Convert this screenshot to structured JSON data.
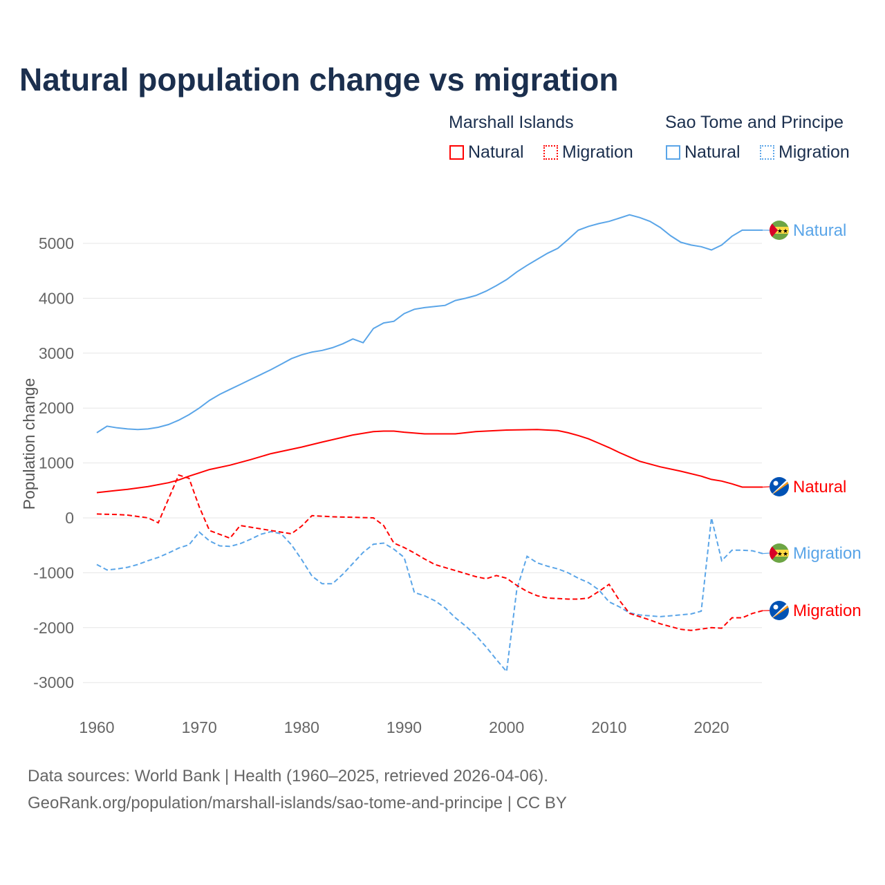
{
  "title": "Natural population change vs migration",
  "legend": {
    "groups": [
      {
        "label": "Marshall Islands",
        "color": "#ff0000",
        "items": [
          "Natural",
          "Migration"
        ]
      },
      {
        "label": "Sao Tome and Principe",
        "color": "#5aa5e8",
        "items": [
          "Natural",
          "Migration"
        ]
      }
    ]
  },
  "footer": {
    "line1": "Data sources: World Bank | Health (1960–2025, retrieved 2026-04-06).",
    "line2": "GeoRank.org/population/marshall-islands/sao-tome-and-principe | CC BY"
  },
  "chart_data": {
    "type": "line",
    "title": "Natural population change vs migration",
    "xlabel": "",
    "ylabel": "Population change",
    "xlim": [
      1960,
      2025
    ],
    "ylim": [
      -3000,
      5500
    ],
    "xticks": [
      "1960",
      "1970",
      "1980",
      "1990",
      "2000",
      "2010",
      "2020"
    ],
    "yticks": [
      "5000",
      "4000",
      "3000",
      "2000",
      "1000",
      "0",
      "-1000",
      "-2000",
      "-3000"
    ],
    "grid": true,
    "series": [
      {
        "name": "Sao Tome and Principe Natural",
        "label": "Natural",
        "flag": "sao-tome",
        "color": "#5aa5e8",
        "dash": false,
        "points": [
          [
            1960,
            1550
          ],
          [
            1961,
            1670
          ],
          [
            1962,
            1640
          ],
          [
            1963,
            1620
          ],
          [
            1964,
            1610
          ],
          [
            1965,
            1620
          ],
          [
            1966,
            1650
          ],
          [
            1967,
            1700
          ],
          [
            1968,
            1780
          ],
          [
            1969,
            1880
          ],
          [
            1970,
            2000
          ],
          [
            1971,
            2140
          ],
          [
            1972,
            2250
          ],
          [
            1973,
            2340
          ],
          [
            1974,
            2430
          ],
          [
            1975,
            2520
          ],
          [
            1976,
            2610
          ],
          [
            1977,
            2700
          ],
          [
            1978,
            2800
          ],
          [
            1979,
            2900
          ],
          [
            1980,
            2970
          ],
          [
            1981,
            3020
          ],
          [
            1982,
            3050
          ],
          [
            1983,
            3100
          ],
          [
            1984,
            3170
          ],
          [
            1985,
            3260
          ],
          [
            1986,
            3190
          ],
          [
            1987,
            3450
          ],
          [
            1988,
            3550
          ],
          [
            1989,
            3580
          ],
          [
            1990,
            3720
          ],
          [
            1991,
            3800
          ],
          [
            1992,
            3830
          ],
          [
            1993,
            3850
          ],
          [
            1994,
            3870
          ],
          [
            1995,
            3960
          ],
          [
            1996,
            4000
          ],
          [
            1997,
            4050
          ],
          [
            1998,
            4130
          ],
          [
            1999,
            4230
          ],
          [
            2000,
            4340
          ],
          [
            2001,
            4480
          ],
          [
            2002,
            4600
          ],
          [
            2003,
            4710
          ],
          [
            2004,
            4820
          ],
          [
            2005,
            4910
          ],
          [
            2006,
            5070
          ],
          [
            2007,
            5240
          ],
          [
            2008,
            5310
          ],
          [
            2009,
            5360
          ],
          [
            2010,
            5400
          ],
          [
            2011,
            5460
          ],
          [
            2012,
            5520
          ],
          [
            2013,
            5470
          ],
          [
            2014,
            5400
          ],
          [
            2015,
            5290
          ],
          [
            2016,
            5140
          ],
          [
            2017,
            5020
          ],
          [
            2018,
            4970
          ],
          [
            2019,
            4940
          ],
          [
            2020,
            4880
          ],
          [
            2021,
            4970
          ],
          [
            2022,
            5130
          ],
          [
            2023,
            5240
          ],
          [
            2024,
            5240
          ],
          [
            2025,
            5240
          ]
        ]
      },
      {
        "name": "Marshall Islands Natural",
        "label": "Natural",
        "flag": "marshall",
        "color": "#ff0000",
        "dash": false,
        "points": [
          [
            1960,
            460
          ],
          [
            1962,
            500
          ],
          [
            1963,
            520
          ],
          [
            1965,
            570
          ],
          [
            1967,
            640
          ],
          [
            1968,
            690
          ],
          [
            1969,
            760
          ],
          [
            1970,
            820
          ],
          [
            1971,
            880
          ],
          [
            1973,
            960
          ],
          [
            1975,
            1060
          ],
          [
            1977,
            1170
          ],
          [
            1980,
            1290
          ],
          [
            1982,
            1380
          ],
          [
            1985,
            1510
          ],
          [
            1987,
            1570
          ],
          [
            1988,
            1580
          ],
          [
            1989,
            1580
          ],
          [
            1990,
            1560
          ],
          [
            1992,
            1530
          ],
          [
            1995,
            1530
          ],
          [
            1997,
            1570
          ],
          [
            2000,
            1600
          ],
          [
            2003,
            1610
          ],
          [
            2005,
            1590
          ],
          [
            2006,
            1550
          ],
          [
            2007,
            1500
          ],
          [
            2008,
            1440
          ],
          [
            2009,
            1360
          ],
          [
            2010,
            1280
          ],
          [
            2011,
            1190
          ],
          [
            2012,
            1110
          ],
          [
            2013,
            1030
          ],
          [
            2014,
            980
          ],
          [
            2015,
            930
          ],
          [
            2017,
            850
          ],
          [
            2019,
            760
          ],
          [
            2020,
            700
          ],
          [
            2021,
            670
          ],
          [
            2022,
            620
          ],
          [
            2023,
            560
          ],
          [
            2025,
            560
          ]
        ]
      },
      {
        "name": "Sao Tome and Principe Migration",
        "label": "Migration",
        "flag": "sao-tome",
        "color": "#5aa5e8",
        "dash": true,
        "points": [
          [
            1960,
            -850
          ],
          [
            1961,
            -950
          ],
          [
            1962,
            -930
          ],
          [
            1963,
            -900
          ],
          [
            1964,
            -850
          ],
          [
            1965,
            -780
          ],
          [
            1966,
            -720
          ],
          [
            1967,
            -640
          ],
          [
            1968,
            -550
          ],
          [
            1969,
            -490
          ],
          [
            1970,
            -260
          ],
          [
            1971,
            -420
          ],
          [
            1972,
            -510
          ],
          [
            1973,
            -520
          ],
          [
            1974,
            -470
          ],
          [
            1975,
            -390
          ],
          [
            1976,
            -300
          ],
          [
            1977,
            -250
          ],
          [
            1978,
            -290
          ],
          [
            1979,
            -490
          ],
          [
            1980,
            -760
          ],
          [
            1981,
            -1060
          ],
          [
            1982,
            -1200
          ],
          [
            1983,
            -1200
          ],
          [
            1984,
            -1030
          ],
          [
            1985,
            -830
          ],
          [
            1986,
            -630
          ],
          [
            1987,
            -480
          ],
          [
            1988,
            -460
          ],
          [
            1989,
            -570
          ],
          [
            1990,
            -720
          ],
          [
            1991,
            -1360
          ],
          [
            1992,
            -1420
          ],
          [
            1993,
            -1510
          ],
          [
            1994,
            -1640
          ],
          [
            1995,
            -1820
          ],
          [
            1996,
            -1970
          ],
          [
            1997,
            -2140
          ],
          [
            1998,
            -2350
          ],
          [
            1999,
            -2580
          ],
          [
            2000,
            -2800
          ],
          [
            2001,
            -1300
          ],
          [
            2002,
            -700
          ],
          [
            2003,
            -820
          ],
          [
            2004,
            -880
          ],
          [
            2005,
            -930
          ],
          [
            2006,
            -1000
          ],
          [
            2007,
            -1100
          ],
          [
            2008,
            -1180
          ],
          [
            2009,
            -1310
          ],
          [
            2010,
            -1530
          ],
          [
            2011,
            -1620
          ],
          [
            2012,
            -1730
          ],
          [
            2013,
            -1770
          ],
          [
            2015,
            -1800
          ],
          [
            2018,
            -1750
          ],
          [
            2019,
            -1700
          ],
          [
            2020,
            0
          ],
          [
            2021,
            -780
          ],
          [
            2022,
            -590
          ],
          [
            2023,
            -590
          ],
          [
            2024,
            -600
          ],
          [
            2025,
            -650
          ]
        ]
      },
      {
        "name": "Marshall Islands Migration",
        "label": "Migration",
        "flag": "marshall",
        "color": "#ff0000",
        "dash": true,
        "points": [
          [
            1960,
            70
          ],
          [
            1962,
            60
          ],
          [
            1963,
            50
          ],
          [
            1965,
            0
          ],
          [
            1966,
            -90
          ],
          [
            1968,
            780
          ],
          [
            1969,
            720
          ],
          [
            1970,
            200
          ],
          [
            1971,
            -230
          ],
          [
            1973,
            -370
          ],
          [
            1974,
            -140
          ],
          [
            1977,
            -230
          ],
          [
            1979,
            -290
          ],
          [
            1980,
            -150
          ],
          [
            1981,
            40
          ],
          [
            1983,
            20
          ],
          [
            1987,
            0
          ],
          [
            1988,
            -140
          ],
          [
            1989,
            -460
          ],
          [
            1990,
            -540
          ],
          [
            1991,
            -640
          ],
          [
            1992,
            -750
          ],
          [
            1993,
            -850
          ],
          [
            1995,
            -960
          ],
          [
            1997,
            -1070
          ],
          [
            1998,
            -1110
          ],
          [
            1999,
            -1050
          ],
          [
            2000,
            -1100
          ],
          [
            2001,
            -1230
          ],
          [
            2002,
            -1340
          ],
          [
            2003,
            -1420
          ],
          [
            2004,
            -1460
          ],
          [
            2006,
            -1480
          ],
          [
            2007,
            -1480
          ],
          [
            2008,
            -1460
          ],
          [
            2009,
            -1340
          ],
          [
            2010,
            -1210
          ],
          [
            2011,
            -1500
          ],
          [
            2012,
            -1740
          ],
          [
            2014,
            -1860
          ],
          [
            2015,
            -1930
          ],
          [
            2017,
            -2030
          ],
          [
            2018,
            -2050
          ],
          [
            2020,
            -2000
          ],
          [
            2021,
            -2010
          ],
          [
            2022,
            -1820
          ],
          [
            2023,
            -1820
          ],
          [
            2024,
            -1740
          ],
          [
            2025,
            -1690
          ]
        ]
      }
    ]
  }
}
